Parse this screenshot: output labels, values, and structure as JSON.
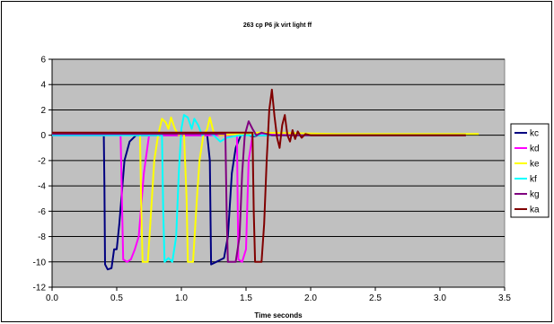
{
  "chart_data": {
    "type": "line",
    "title": "263 cp P6 jk virt light ff",
    "xlabel": "Time seconds",
    "ylabel": "",
    "xlim": [
      0,
      3.5
    ],
    "ylim": [
      -12,
      6
    ],
    "xticks": [
      "0.0",
      "0.5",
      "1.0",
      "1.5",
      "2.0",
      "2.5",
      "3.0",
      "3.5"
    ],
    "yticks": [
      "6",
      "4",
      "2",
      "0",
      "-2",
      "-4",
      "-6",
      "-8",
      "-10",
      "-12"
    ],
    "grid": "horizontal",
    "legend_position": "right",
    "plot_background": "#c0c0c0",
    "series": [
      {
        "name": "kc",
        "color": "#000080",
        "points": [
          [
            0,
            0
          ],
          [
            0.4,
            0
          ],
          [
            0.405,
            -4
          ],
          [
            0.41,
            -10.2
          ],
          [
            0.43,
            -10.6
          ],
          [
            0.46,
            -10.5
          ],
          [
            0.48,
            -9
          ],
          [
            0.5,
            -9
          ],
          [
            0.52,
            -7
          ],
          [
            0.56,
            -2
          ],
          [
            0.6,
            -0.5
          ],
          [
            0.65,
            0
          ],
          [
            1.2,
            0
          ],
          [
            1.22,
            -2
          ],
          [
            1.23,
            -10.2
          ],
          [
            1.27,
            -10
          ],
          [
            1.33,
            -9.7
          ],
          [
            1.36,
            -8
          ],
          [
            1.39,
            -3
          ],
          [
            1.42,
            -1
          ],
          [
            1.46,
            0
          ],
          [
            1.5,
            0.1
          ],
          [
            1.55,
            -0.1
          ],
          [
            1.6,
            0
          ],
          [
            3.2,
            0
          ]
        ]
      },
      {
        "name": "kd",
        "color": "#ff00ff",
        "points": [
          [
            0,
            0
          ],
          [
            0.53,
            0
          ],
          [
            0.54,
            -5
          ],
          [
            0.55,
            -9.8
          ],
          [
            0.58,
            -10
          ],
          [
            0.61,
            -9.8
          ],
          [
            0.64,
            -9
          ],
          [
            0.67,
            -8
          ],
          [
            0.71,
            -3
          ],
          [
            0.75,
            0
          ],
          [
            0.8,
            0
          ],
          [
            1.43,
            0
          ],
          [
            1.44,
            -9.8
          ],
          [
            1.47,
            -10
          ],
          [
            1.5,
            -9
          ],
          [
            1.52,
            -2
          ],
          [
            1.55,
            0
          ],
          [
            1.6,
            0.1
          ],
          [
            3.2,
            0
          ]
        ]
      },
      {
        "name": "ke",
        "color": "#ffff00",
        "points": [
          [
            0,
            0.1
          ],
          [
            0.68,
            0.1
          ],
          [
            0.69,
            -6
          ],
          [
            0.7,
            -10
          ],
          [
            0.74,
            -10
          ],
          [
            0.76,
            -7
          ],
          [
            0.79,
            -2
          ],
          [
            0.82,
            0
          ],
          [
            0.85,
            1.3
          ],
          [
            0.88,
            1
          ],
          [
            0.9,
            0.5
          ],
          [
            0.92,
            1.4
          ],
          [
            0.95,
            0.5
          ],
          [
            0.98,
            0
          ],
          [
            1.02,
            0.1
          ],
          [
            1.04,
            -5
          ],
          [
            1.05,
            -10
          ],
          [
            1.09,
            -10
          ],
          [
            1.12,
            -5
          ],
          [
            1.14,
            -2
          ],
          [
            1.17,
            0
          ],
          [
            1.2,
            0.5
          ],
          [
            1.22,
            1.4
          ],
          [
            1.25,
            0.2
          ],
          [
            1.3,
            0
          ],
          [
            1.6,
            0.2
          ],
          [
            2.2,
            0.1
          ],
          [
            3.3,
            0.1
          ]
        ]
      },
      {
        "name": "kf",
        "color": "#00ffff",
        "points": [
          [
            0,
            0
          ],
          [
            0.85,
            0
          ],
          [
            0.86,
            -6
          ],
          [
            0.87,
            -10
          ],
          [
            0.9,
            -9.7
          ],
          [
            0.93,
            -10
          ],
          [
            0.96,
            -8
          ],
          [
            0.98,
            -3
          ],
          [
            1.0,
            0.5
          ],
          [
            1.02,
            1.6
          ],
          [
            1.05,
            1.4
          ],
          [
            1.08,
            0.5
          ],
          [
            1.1,
            1.3
          ],
          [
            1.13,
            0.8
          ],
          [
            1.16,
            0
          ],
          [
            1.2,
            0.2
          ],
          [
            1.25,
            0
          ],
          [
            1.3,
            -0.5
          ],
          [
            1.35,
            -0.2
          ],
          [
            1.45,
            0
          ],
          [
            3.2,
            0
          ]
        ]
      },
      {
        "name": "kg",
        "color": "#800080",
        "points": [
          [
            0,
            0.1
          ],
          [
            1.34,
            0.1
          ],
          [
            1.35,
            -6
          ],
          [
            1.36,
            -10
          ],
          [
            1.42,
            -10
          ],
          [
            1.45,
            -8
          ],
          [
            1.47,
            -3
          ],
          [
            1.49,
            0
          ],
          [
            1.52,
            1.1
          ],
          [
            1.55,
            0.5
          ],
          [
            1.58,
            0
          ],
          [
            1.62,
            0.2
          ],
          [
            1.7,
            0
          ],
          [
            3.2,
            0
          ]
        ]
      },
      {
        "name": "ka",
        "color": "#800000",
        "points": [
          [
            0,
            0.2
          ],
          [
            1.55,
            0.2
          ],
          [
            1.56,
            -6
          ],
          [
            1.57,
            -10
          ],
          [
            1.62,
            -10
          ],
          [
            1.64,
            -7
          ],
          [
            1.66,
            -2
          ],
          [
            1.68,
            2
          ],
          [
            1.7,
            3.6
          ],
          [
            1.72,
            1.5
          ],
          [
            1.74,
            -0.2
          ],
          [
            1.76,
            -1
          ],
          [
            1.78,
            0.8
          ],
          [
            1.8,
            1.6
          ],
          [
            1.82,
            0
          ],
          [
            1.84,
            -0.5
          ],
          [
            1.86,
            0.4
          ],
          [
            1.88,
            -0.3
          ],
          [
            1.9,
            0.3
          ],
          [
            1.93,
            -0.2
          ],
          [
            1.96,
            0.1
          ],
          [
            2.0,
            0
          ],
          [
            3.2,
            0
          ]
        ]
      }
    ]
  }
}
